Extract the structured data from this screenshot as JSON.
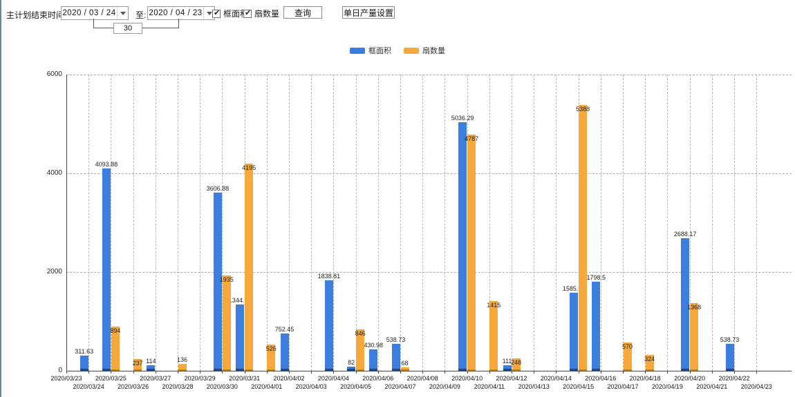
{
  "toolbar": {
    "label": "主计划结束时间:",
    "date_from": "2020 / 03 / 24",
    "to_label": "至:",
    "date_to": "2020 / 04 / 23",
    "days_value": "30",
    "checkbox_area": {
      "label": "框面积",
      "checked": true
    },
    "checkbox_fan": {
      "label": "扇数量",
      "checked": true
    },
    "query_button": "查询",
    "daily_output_button": "单日产量设置",
    "check_glyph": "✔"
  },
  "legend": {
    "items": [
      {
        "label": "框面积",
        "color": "#3b7edd"
      },
      {
        "label": "扇数量",
        "color": "#f5a93c"
      }
    ]
  },
  "chart_data": {
    "type": "bar",
    "title": "",
    "xlabel": "",
    "ylabel": "",
    "ylim": [
      0,
      6000
    ],
    "yticks": [
      0,
      2000,
      4000,
      6000
    ],
    "grid": true,
    "legend_position": "top-center",
    "categories": [
      "2020/03/23",
      "2020/03/24",
      "2020/03/25",
      "2020/03/26",
      "2020/03/27",
      "2020/03/28",
      "2020/03/29",
      "2020/03/30",
      "2020/03/31",
      "2020/04/01",
      "2020/04/02",
      "2020/04/03",
      "2020/04/04",
      "2020/04/05",
      "2020/04/06",
      "2020/04/07",
      "2020/04/08",
      "2020/04/09",
      "2020/04/10",
      "2020/04/11",
      "2020/04/12",
      "2020/04/13",
      "2020/04/14",
      "2020/04/15",
      "2020/04/16",
      "2020/04/17",
      "2020/04/18",
      "2020/04/19",
      "2020/04/20",
      "2020/04/21",
      "2020/04/22",
      "2020/04/23"
    ],
    "series": [
      {
        "name": "框面积",
        "color": "#3b7edd",
        "values": [
          null,
          311.63,
          4093.88,
          null,
          114,
          null,
          null,
          3606.88,
          1344.95,
          null,
          752.45,
          null,
          1838.81,
          82,
          430.98,
          538.73,
          null,
          null,
          5036.29,
          null,
          111,
          null,
          null,
          1585.96,
          1798.5,
          null,
          null,
          null,
          2688.17,
          null,
          538.73,
          null
        ]
      },
      {
        "name": "扇数量",
        "color": "#f5a93c",
        "values": [
          null,
          null,
          894,
          237,
          null,
          136,
          null,
          1935,
          4195,
          526,
          null,
          null,
          null,
          846,
          null,
          68,
          null,
          null,
          4787,
          1415,
          248,
          null,
          null,
          5388,
          null,
          570,
          324,
          null,
          1368,
          null,
          null,
          null
        ]
      }
    ]
  }
}
